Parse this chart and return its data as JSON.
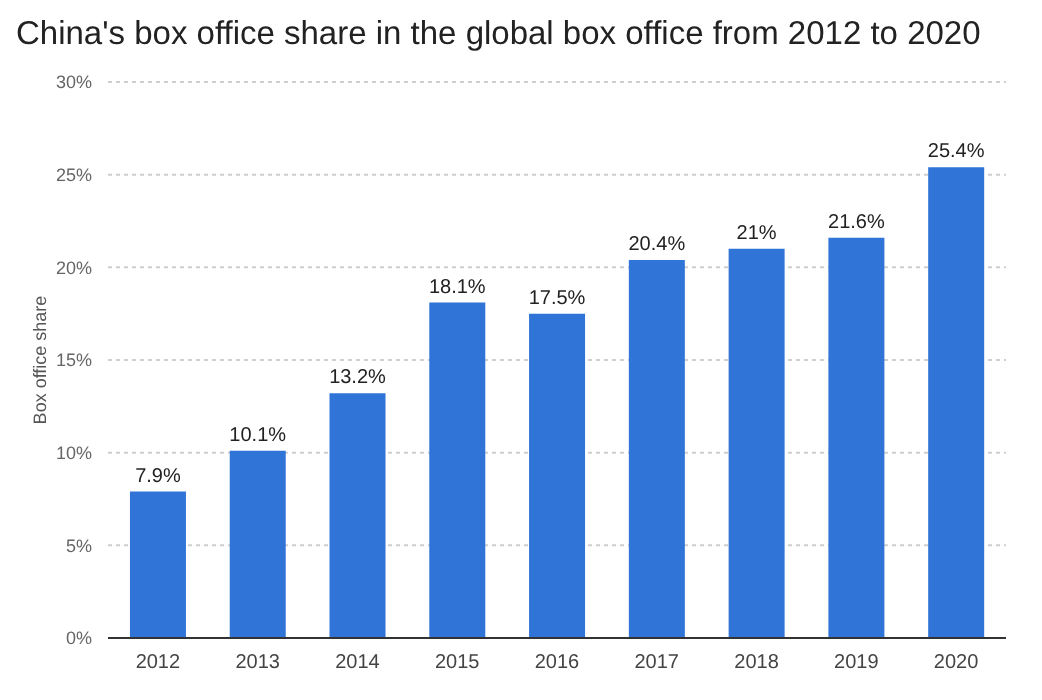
{
  "chart_data": {
    "type": "bar",
    "title": "China's box office share in the global box office from 2012 to 2020",
    "ylabel": "Box office share",
    "categories": [
      "2012",
      "2013",
      "2014",
      "2015",
      "2016",
      "2017",
      "2018",
      "2019",
      "2020"
    ],
    "values": [
      7.9,
      10.1,
      13.2,
      18.1,
      17.5,
      20.4,
      21,
      21.6,
      25.4
    ],
    "value_labels": [
      "7.9%",
      "10.1%",
      "13.2%",
      "18.1%",
      "17.5%",
      "20.4%",
      "21%",
      "21.6%",
      "25.4%"
    ],
    "color": "#2f74d6",
    "ylim": [
      0,
      30
    ],
    "yticks": [
      {
        "value": 0,
        "label": "0%"
      },
      {
        "value": 5,
        "label": "5%"
      },
      {
        "value": 10,
        "label": "10%"
      },
      {
        "value": 15,
        "label": "15%"
      },
      {
        "value": 20,
        "label": "20%"
      },
      {
        "value": 25,
        "label": "25%"
      },
      {
        "value": 30,
        "label": "30%"
      }
    ],
    "grid": "y"
  }
}
